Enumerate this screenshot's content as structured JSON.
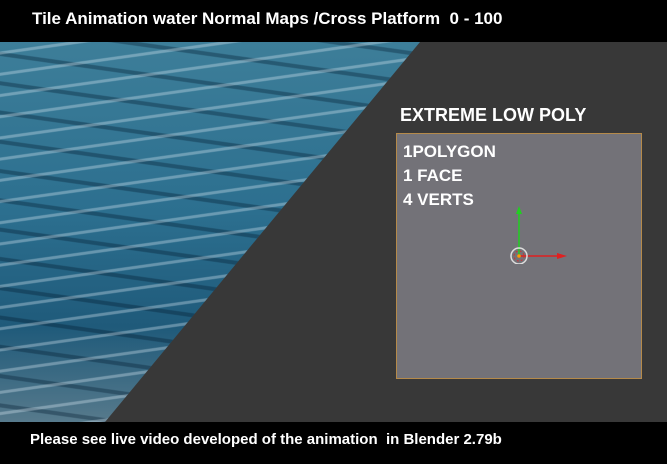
{
  "header": {
    "title": "Tile Animation water Normal Maps /Cross Platform  0 - 100"
  },
  "panel": {
    "heading": "EXTREME LOW POLY",
    "lines": [
      "1POLYGON",
      "1 FACE",
      "4 VERTS"
    ]
  },
  "footer": {
    "text": "Please see live video developed of the animation  in Blender 2.79b"
  },
  "colors": {
    "background": "#383838",
    "plane": "#737278",
    "plane_border": "#b58a4a",
    "x_axis": "#e02020",
    "y_axis": "#20d020"
  },
  "icons": [
    "transform-gizmo-icon",
    "3d-cursor-icon"
  ]
}
